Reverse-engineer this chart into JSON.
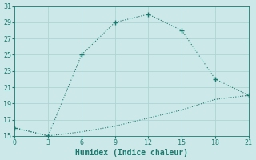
{
  "xlabel": "Humidex (Indice chaleur)",
  "line1_x": [
    0,
    3,
    6,
    9,
    12,
    15,
    18,
    21
  ],
  "line1_y": [
    16,
    15,
    25,
    29,
    30,
    28,
    22,
    20
  ],
  "line2_x": [
    0,
    3,
    6,
    9,
    12,
    15,
    18,
    21
  ],
  "line2_y": [
    16,
    15,
    15.5,
    16.2,
    17.2,
    18.2,
    19.5,
    20
  ],
  "line_color": "#1a7a6e",
  "bg_color": "#cce8e8",
  "grid_color": "#aed4d4",
  "xlim": [
    0,
    21
  ],
  "ylim": [
    15,
    31
  ],
  "xticks": [
    0,
    3,
    6,
    9,
    12,
    15,
    18,
    21
  ],
  "yticks": [
    15,
    17,
    19,
    21,
    23,
    25,
    27,
    29,
    31
  ],
  "tick_fontsize": 6,
  "xlabel_fontsize": 7
}
